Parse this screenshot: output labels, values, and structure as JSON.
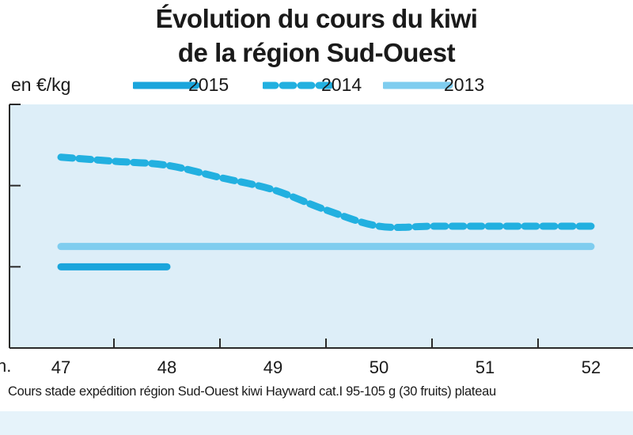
{
  "title_line1": "Évolution du cours du kiwi",
  "title_line2": "de la région Sud-Ouest",
  "unit_label": "en €/kg",
  "x_cut_label": "n.",
  "source_note": "Cours stade expédition région Sud-Ouest kiwi Hayward cat.I 95-105 g (30 fruits) plateau",
  "colors": {
    "plot_bg": "#ddeef8",
    "axis": "#2a2a2a",
    "s2015": "#1aa5dc",
    "s2014": "#22b0e0",
    "s2013": "#7fcdef"
  },
  "chart_data": {
    "type": "line",
    "xlabel": "",
    "ylabel": "en €/kg",
    "x": [
      47,
      48,
      49,
      50,
      51,
      52
    ],
    "xlim": [
      46.5,
      52.5
    ],
    "ylim": [
      0,
      3
    ],
    "y_ticks_labeled": false,
    "legend_position": "top",
    "grid": false,
    "series": [
      {
        "name": "2015",
        "style": "solid-thick",
        "color": "#1aa5dc",
        "points": [
          [
            47,
            1.0
          ],
          [
            48,
            1.0
          ]
        ]
      },
      {
        "name": "2014",
        "style": "dashed",
        "color": "#22b0e0",
        "points": [
          [
            47,
            2.35
          ],
          [
            47.5,
            2.3
          ],
          [
            48,
            2.25
          ],
          [
            48.5,
            2.1
          ],
          [
            49,
            1.95
          ],
          [
            49.5,
            1.7
          ],
          [
            50,
            1.5
          ],
          [
            50.5,
            1.5
          ],
          [
            51,
            1.5
          ],
          [
            51.5,
            1.5
          ],
          [
            52,
            1.5
          ]
        ]
      },
      {
        "name": "2013",
        "style": "solid-light",
        "color": "#7fcdef",
        "points": [
          [
            47,
            1.25
          ],
          [
            52,
            1.25
          ]
        ]
      }
    ]
  }
}
